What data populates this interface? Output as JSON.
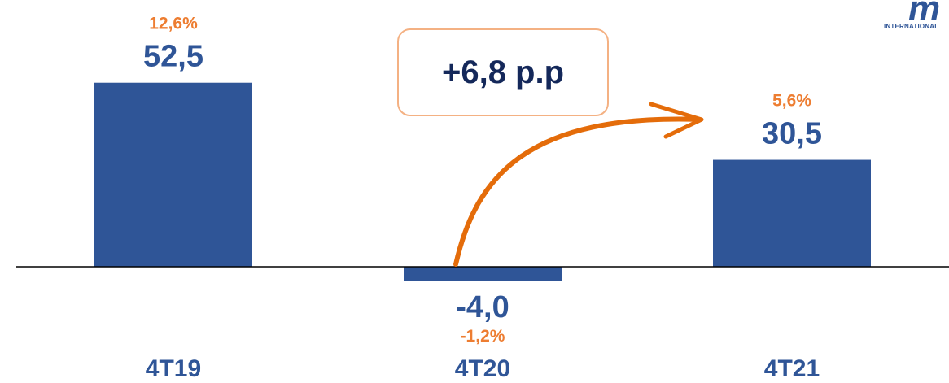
{
  "chart_data": {
    "type": "bar",
    "categories": [
      "4T19",
      "4T20",
      "4T21"
    ],
    "values": [
      52.5,
      -4.0,
      30.5
    ],
    "value_labels": [
      "52,5",
      "-4,0",
      "30,5"
    ],
    "percent_labels": [
      "12,6%",
      "-1,2%",
      "5,6%"
    ],
    "annotation": "+6,8 p.p",
    "colors": {
      "bar": "#2f5597",
      "percent": "#ed7d31",
      "arrow": "#e46c0a",
      "callout_border": "#f4b183"
    }
  },
  "logo": {
    "text": "INTERNATIONAL"
  }
}
